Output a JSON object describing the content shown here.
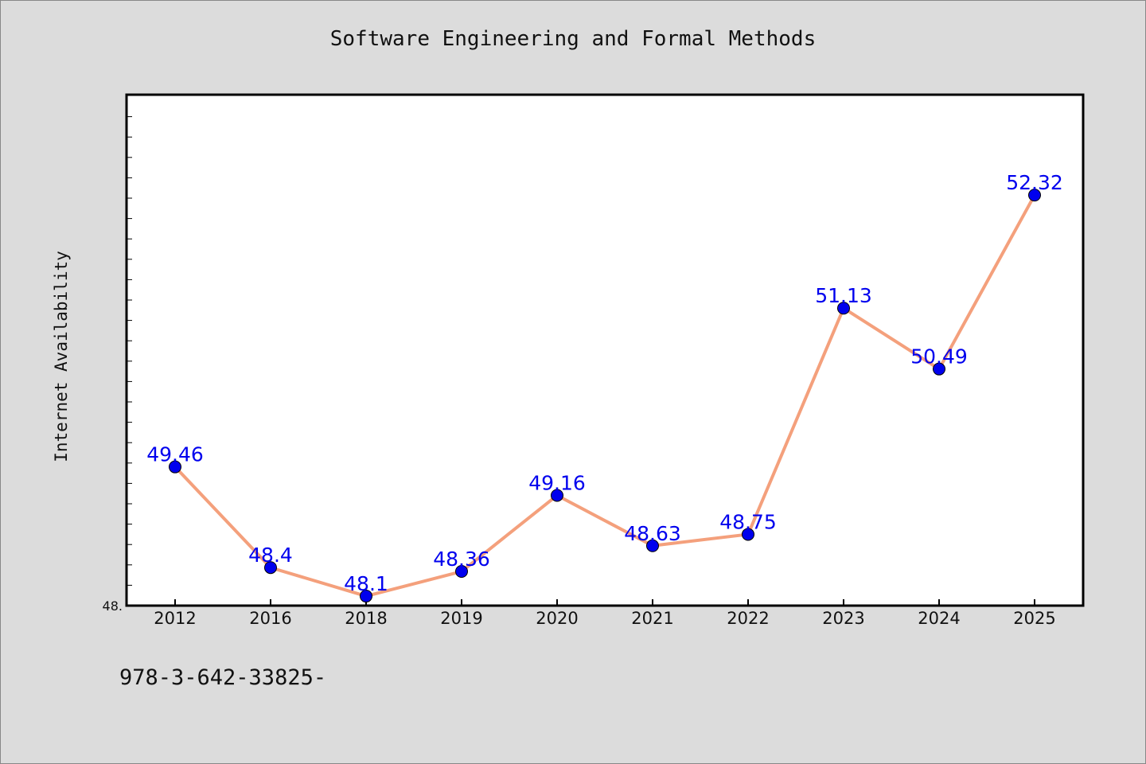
{
  "chart_data": {
    "type": "line",
    "title": "Software Engineering and Formal Methods",
    "xlabel": "",
    "ylabel": "Internet Availability",
    "categories": [
      "2012",
      "2016",
      "2018",
      "2019",
      "2020",
      "2021",
      "2022",
      "2023",
      "2024",
      "2025"
    ],
    "values": [
      49.46,
      48.4,
      48.1,
      48.36,
      49.16,
      48.63,
      48.75,
      51.13,
      50.49,
      52.32
    ],
    "data_labels": [
      "49.46",
      "48.4",
      "48.1",
      "48.36",
      "49.16",
      "48.63",
      "48.75",
      "51.13",
      "50.49",
      "52.32"
    ],
    "y_tick_label": "48.",
    "ylim": [
      48.0,
      53.0
    ],
    "grid": false,
    "legend": "none",
    "colors": {
      "line": "#f4a07c",
      "marker": "#0000ee",
      "marker_edge": "#000000",
      "label": "#0000ee",
      "plot_background": "#ffffff",
      "figure_background": "#dcdcdc"
    }
  },
  "footer": {
    "text": "978-3-642-33825-"
  }
}
